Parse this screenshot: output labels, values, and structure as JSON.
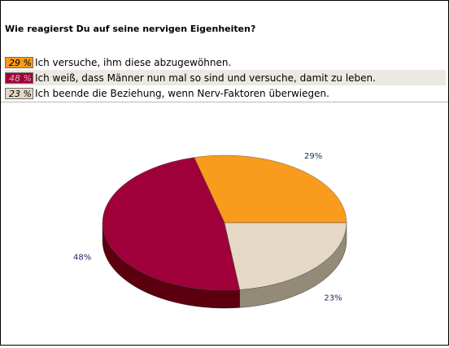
{
  "question": "Wie reagierst Du auf seine nervigen Eigenheiten?",
  "legend": [
    {
      "pct": "29 %",
      "text": "Ich versuche, ihm diese abzugewöhnen.",
      "color": "#f99b1c"
    },
    {
      "pct": "48 %",
      "text": "Ich weiß, dass Männer nun mal so sind und versuche, damit zu leben.",
      "color": "#a0003a"
    },
    {
      "pct": "23 %",
      "text": "Ich beende die Beziehung, wenn Nerv-Faktoren überwiegen.",
      "color": "#e5d9c5"
    }
  ],
  "chart_data": {
    "type": "pie",
    "values": [
      29,
      48,
      23
    ],
    "labels": [
      "29%",
      "48%",
      "23%"
    ],
    "colors": [
      "#f99b1c",
      "#a0003a",
      "#e5d9c5"
    ],
    "side_colors": [
      "#b86a00",
      "#5c0010",
      "#948a78"
    ],
    "title": ""
  }
}
